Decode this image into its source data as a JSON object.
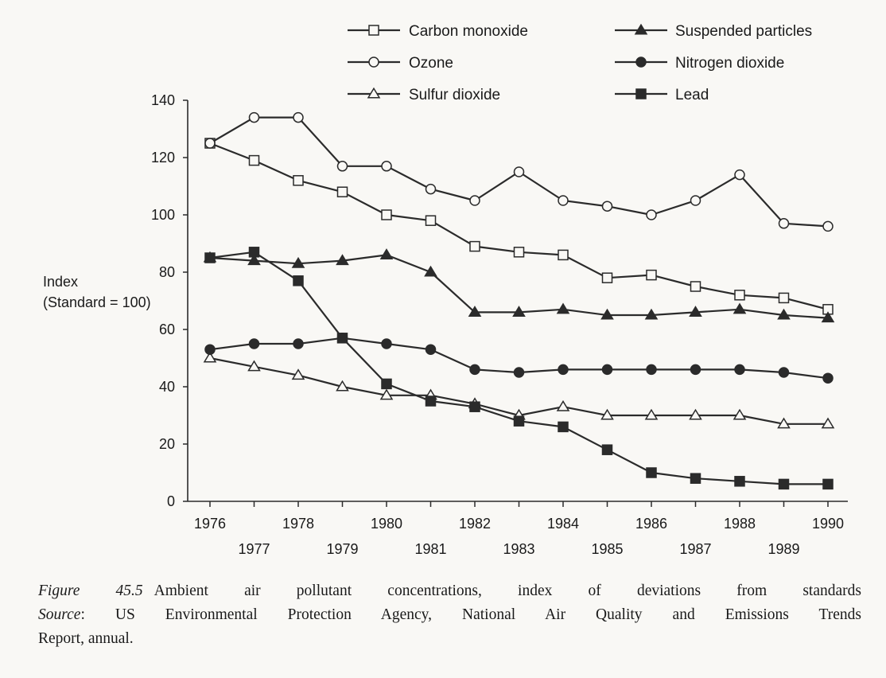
{
  "chart_data": {
    "type": "line",
    "ylabel_line1": "Index",
    "ylabel_line2": "(Standard = 100)",
    "ylim": [
      0,
      140
    ],
    "yticks": [
      0,
      20,
      40,
      60,
      80,
      100,
      120,
      140
    ],
    "xlim": [
      1976,
      1990
    ],
    "xticks_upper": [
      "1976",
      "1978",
      "1980",
      "1982",
      "1984",
      "1986",
      "1988",
      "1990"
    ],
    "xticks_lower": [
      "1977",
      "1979",
      "1981",
      "1983",
      "1985",
      "1987",
      "1989"
    ],
    "grid": false,
    "legend_placement": "top-center",
    "x": [
      1976,
      1977,
      1978,
      1979,
      1980,
      1981,
      1982,
      1983,
      1984,
      1985,
      1986,
      1987,
      1988,
      1989,
      1990
    ],
    "series": [
      {
        "name": "Carbon monoxide",
        "marker": "square-open",
        "values": [
          125,
          119,
          112,
          108,
          100,
          98,
          89,
          87,
          86,
          78,
          79,
          75,
          72,
          71,
          67
        ]
      },
      {
        "name": "Ozone",
        "marker": "circle-open",
        "values": [
          125,
          134,
          134,
          117,
          117,
          109,
          105,
          115,
          105,
          103,
          100,
          105,
          114,
          97,
          96
        ]
      },
      {
        "name": "Sulfur dioxide",
        "marker": "triangle-open",
        "values": [
          50,
          47,
          44,
          40,
          37,
          37,
          34,
          30,
          33,
          30,
          30,
          30,
          30,
          27,
          27
        ]
      },
      {
        "name": "Suspended particles",
        "marker": "triangle-filled",
        "values": [
          85,
          84,
          83,
          84,
          86,
          80,
          66,
          66,
          67,
          65,
          65,
          66,
          67,
          65,
          64
        ]
      },
      {
        "name": "Nitrogen dioxide",
        "marker": "circle-filled",
        "values": [
          53,
          55,
          55,
          57,
          55,
          53,
          46,
          45,
          46,
          46,
          46,
          46,
          46,
          45,
          43
        ]
      },
      {
        "name": "Lead",
        "marker": "square-filled",
        "values": [
          85,
          87,
          77,
          57,
          41,
          35,
          33,
          28,
          26,
          18,
          10,
          8,
          7,
          6,
          6
        ]
      }
    ]
  },
  "caption": {
    "figure_label": "Figure 45.5",
    "title": "Ambient air pollutant concentrations, index of deviations from standards",
    "source_label": "Source",
    "source_text_line1": ": US Environmental Protection Agency, National Air Quality and Emissions Trends",
    "source_text_line2": "Report, annual."
  },
  "colors": {
    "line": "#2b2b2b",
    "background": "#f9f8f5"
  }
}
